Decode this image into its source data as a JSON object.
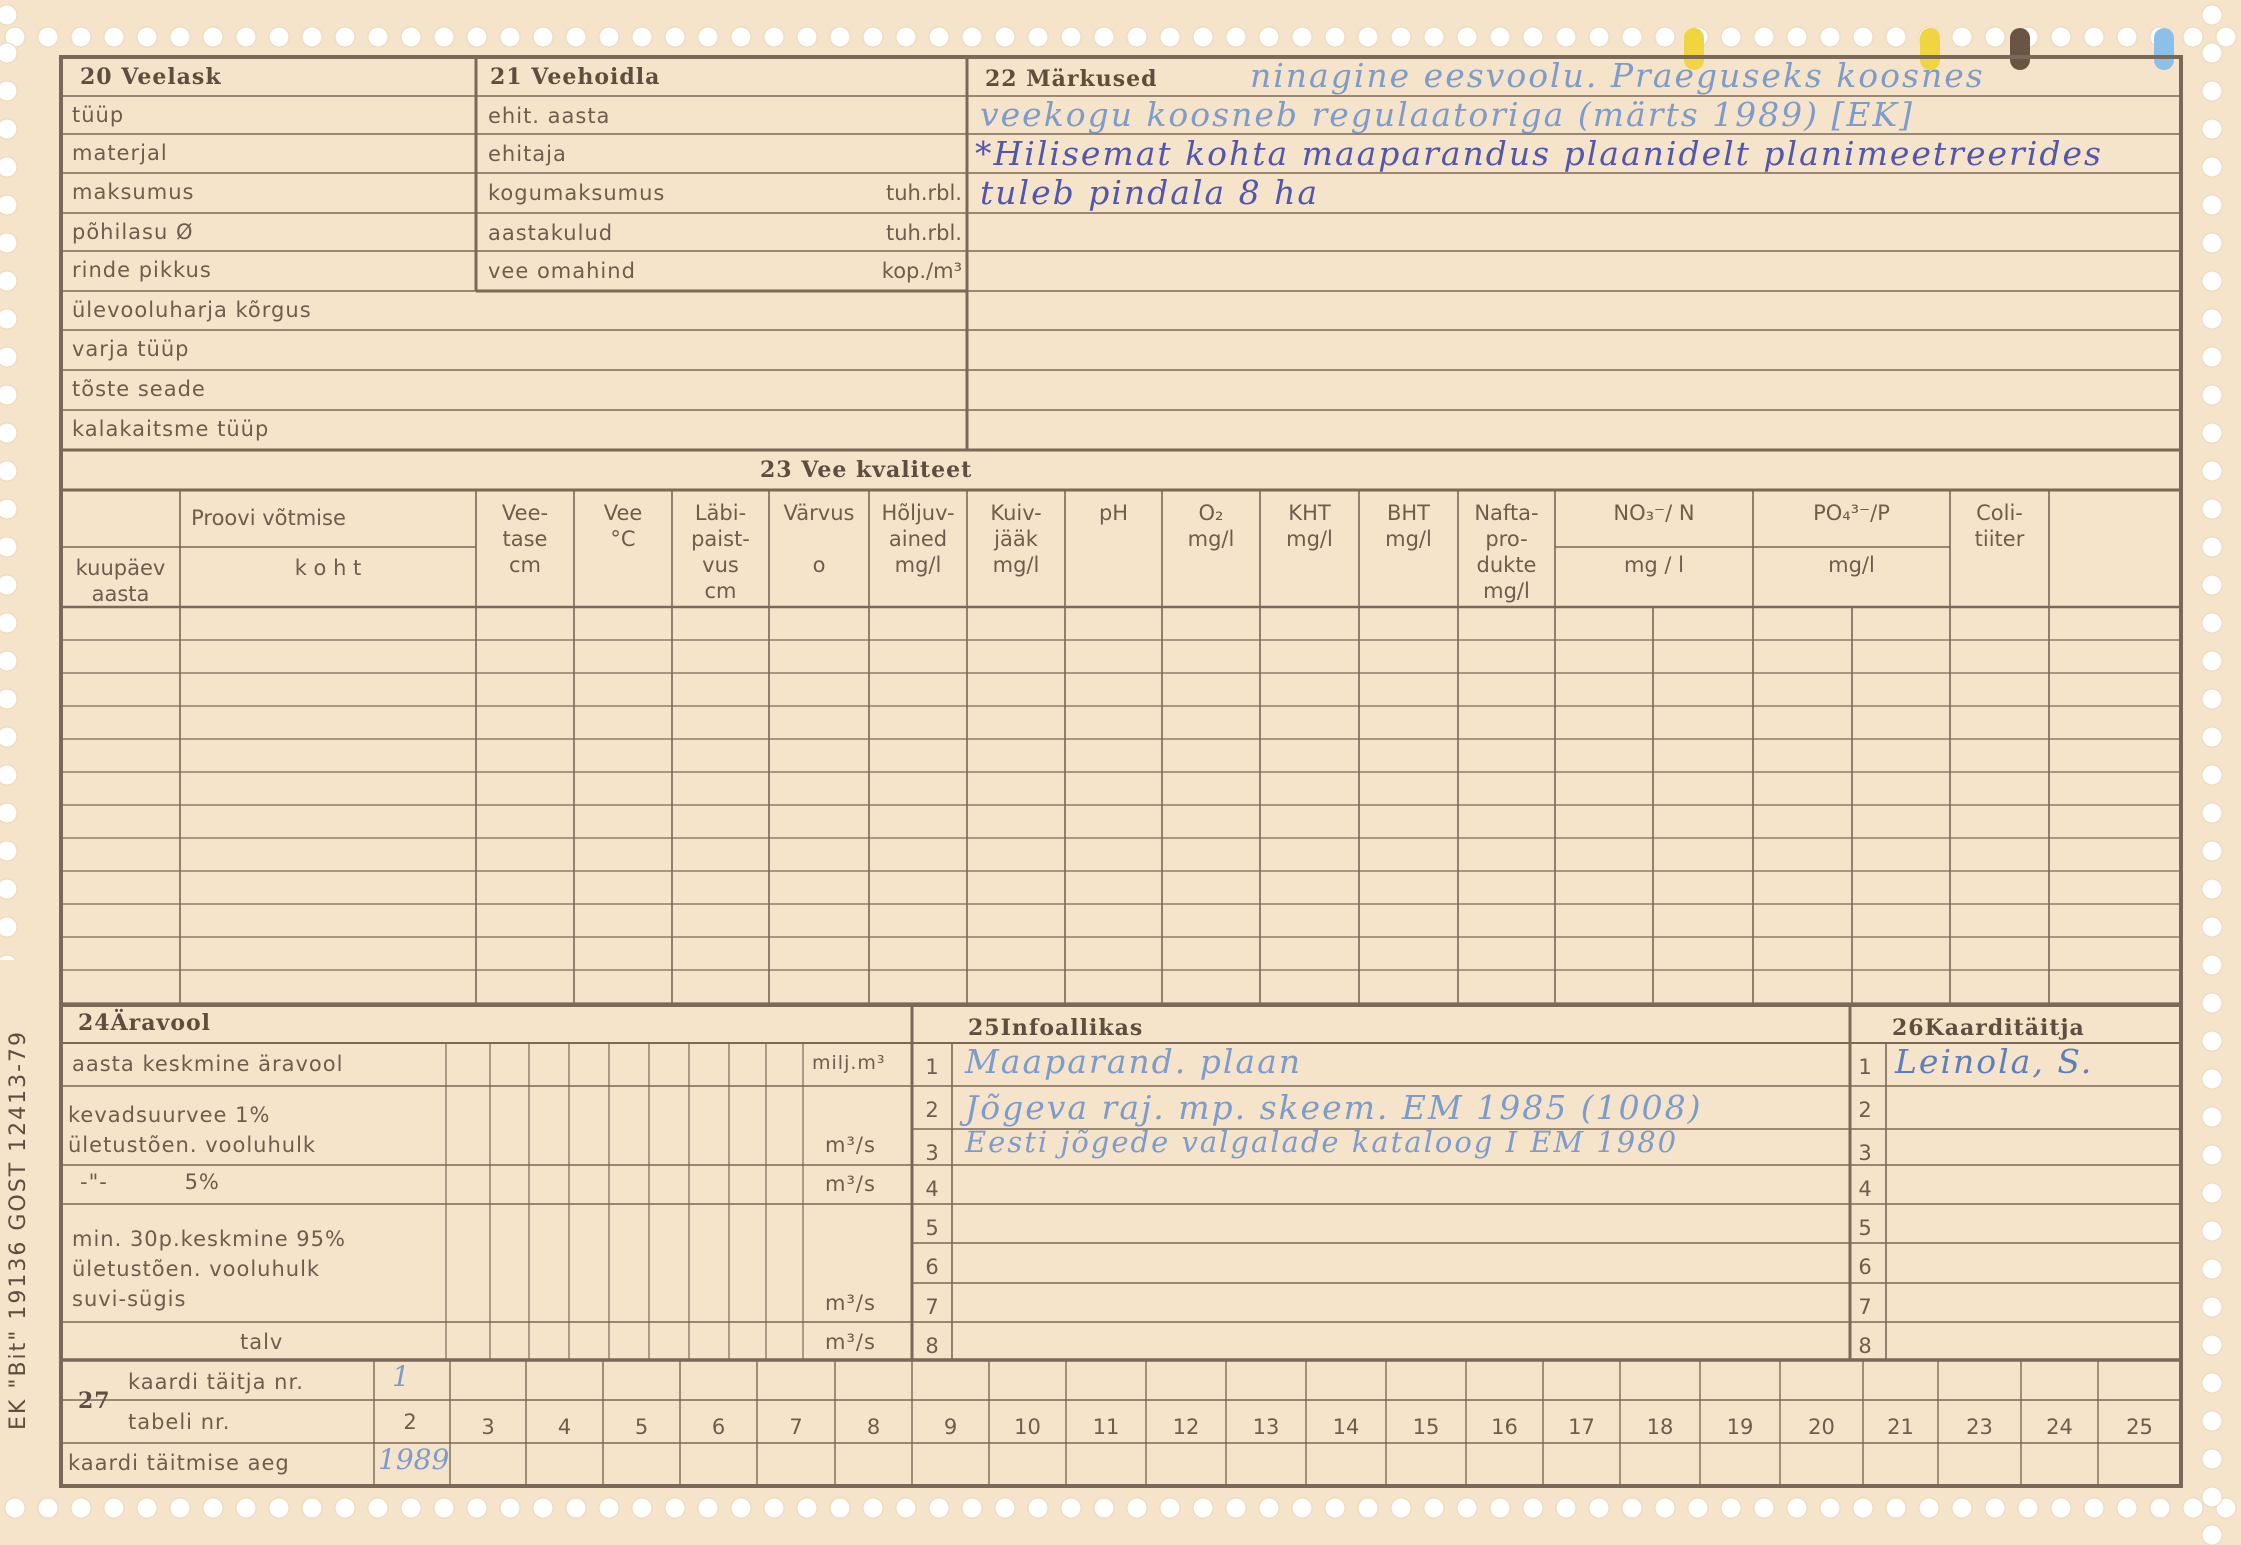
{
  "s20": {
    "title": "20 Veelask",
    "rows": [
      "tüüp",
      "materjal",
      "maksumus",
      "põhilasu Ø",
      "rinde pikkus",
      "ülevooluharja kõrgus",
      "varja tüüp",
      "tõste seade",
      "kalakaitsme tüüp"
    ]
  },
  "s21": {
    "title": "21 Veehoidla",
    "rows": [
      {
        "label": "ehit. aasta",
        "unit": ""
      },
      {
        "label": "ehitaja",
        "unit": ""
      },
      {
        "label": "kogumaksumus",
        "unit": "tuh.rbl."
      },
      {
        "label": "aastakulud",
        "unit": "tuh.rbl."
      },
      {
        "label": "vee omahind",
        "unit": "kop./m³"
      }
    ]
  },
  "s22": {
    "title": "22 Märkused",
    "notes": [
      "ninagine eesvoolu. Praeguseks koosnes",
      "veekogu koosneb regulaatoriga (märts 1989) [EK]",
      "*Hilisemat kohta maaparandus plaanidelt planimeetreerides",
      "tuleb pindala 8 ha"
    ]
  },
  "s23": {
    "title": "23 Vee kvaliteet",
    "group": "Proovi võtmise",
    "cols": [
      "kuupäev\naasta",
      "k o h t",
      "Vee-\ntase\ncm",
      "Vee\n°C",
      "Läbi-\npaist-\nvus\ncm",
      "Värvus\n\no",
      "Hõljuv-\nained\nmg/l",
      "Kuiv-\njääk\nmg/l",
      "pH",
      "O₂\nmg/l",
      "KHT\nmg/l",
      "BHT\nmg/l",
      "Nafta-\npro-\ndukte\nmg/l",
      "NO₃⁻/ N\n\nmg / l",
      "PO₄³⁻/P\n\nmg/l",
      "Coli-\ntiiter",
      ""
    ]
  },
  "s24": {
    "title": "24Äravool",
    "labels": [
      "aasta keskmine äravool",
      "kevadsuurvee 1%\nületustõen. vooluhulk",
      "-\"-          5%",
      "min. 30p.keskmine 95%\nületustõen. vooluhulk\n          suvi-sügis",
      "talv"
    ],
    "units": [
      "milj.m³",
      "m³/s",
      "m³/s",
      "m³/s",
      "m³/s"
    ]
  },
  "s25": {
    "title": "25Infoallikas",
    "rows": [
      "1",
      "2",
      "3",
      "4",
      "5",
      "6",
      "7",
      "8"
    ],
    "entries": [
      "Maaparand. plaan",
      "Jõgeva raj. mp. skeem. EM 1985 (1008)",
      "Eesti jõgede valgalade kataloog I EM 1980"
    ]
  },
  "s26": {
    "title": "26Kaarditäitja",
    "rows": [
      "1",
      "2",
      "3",
      "4",
      "5",
      "6",
      "7",
      "8"
    ],
    "entries": [
      "Leinola, S."
    ]
  },
  "s27": {
    "number": "27",
    "labels": [
      "kaardi täitja nr.",
      "tabeli nr.",
      "kaardi täitmise aeg"
    ],
    "filler_nr": "1",
    "table_nr": "2",
    "fill_date": "1989",
    "cols": [
      "3",
      "4",
      "5",
      "6",
      "7",
      "8",
      "9",
      "10",
      "11",
      "12",
      "13",
      "14",
      "15",
      "16",
      "17",
      "18",
      "19",
      "20",
      "21",
      "23",
      "24",
      "25"
    ]
  },
  "side_text": "EK \"Bit\" 19136   GOST 12413-79",
  "colors": {
    "paper": "#f6e4ca",
    "ink": "#6e5d4d",
    "pen_light": "#7b9ccc",
    "pen_dark": "#5057ae"
  }
}
